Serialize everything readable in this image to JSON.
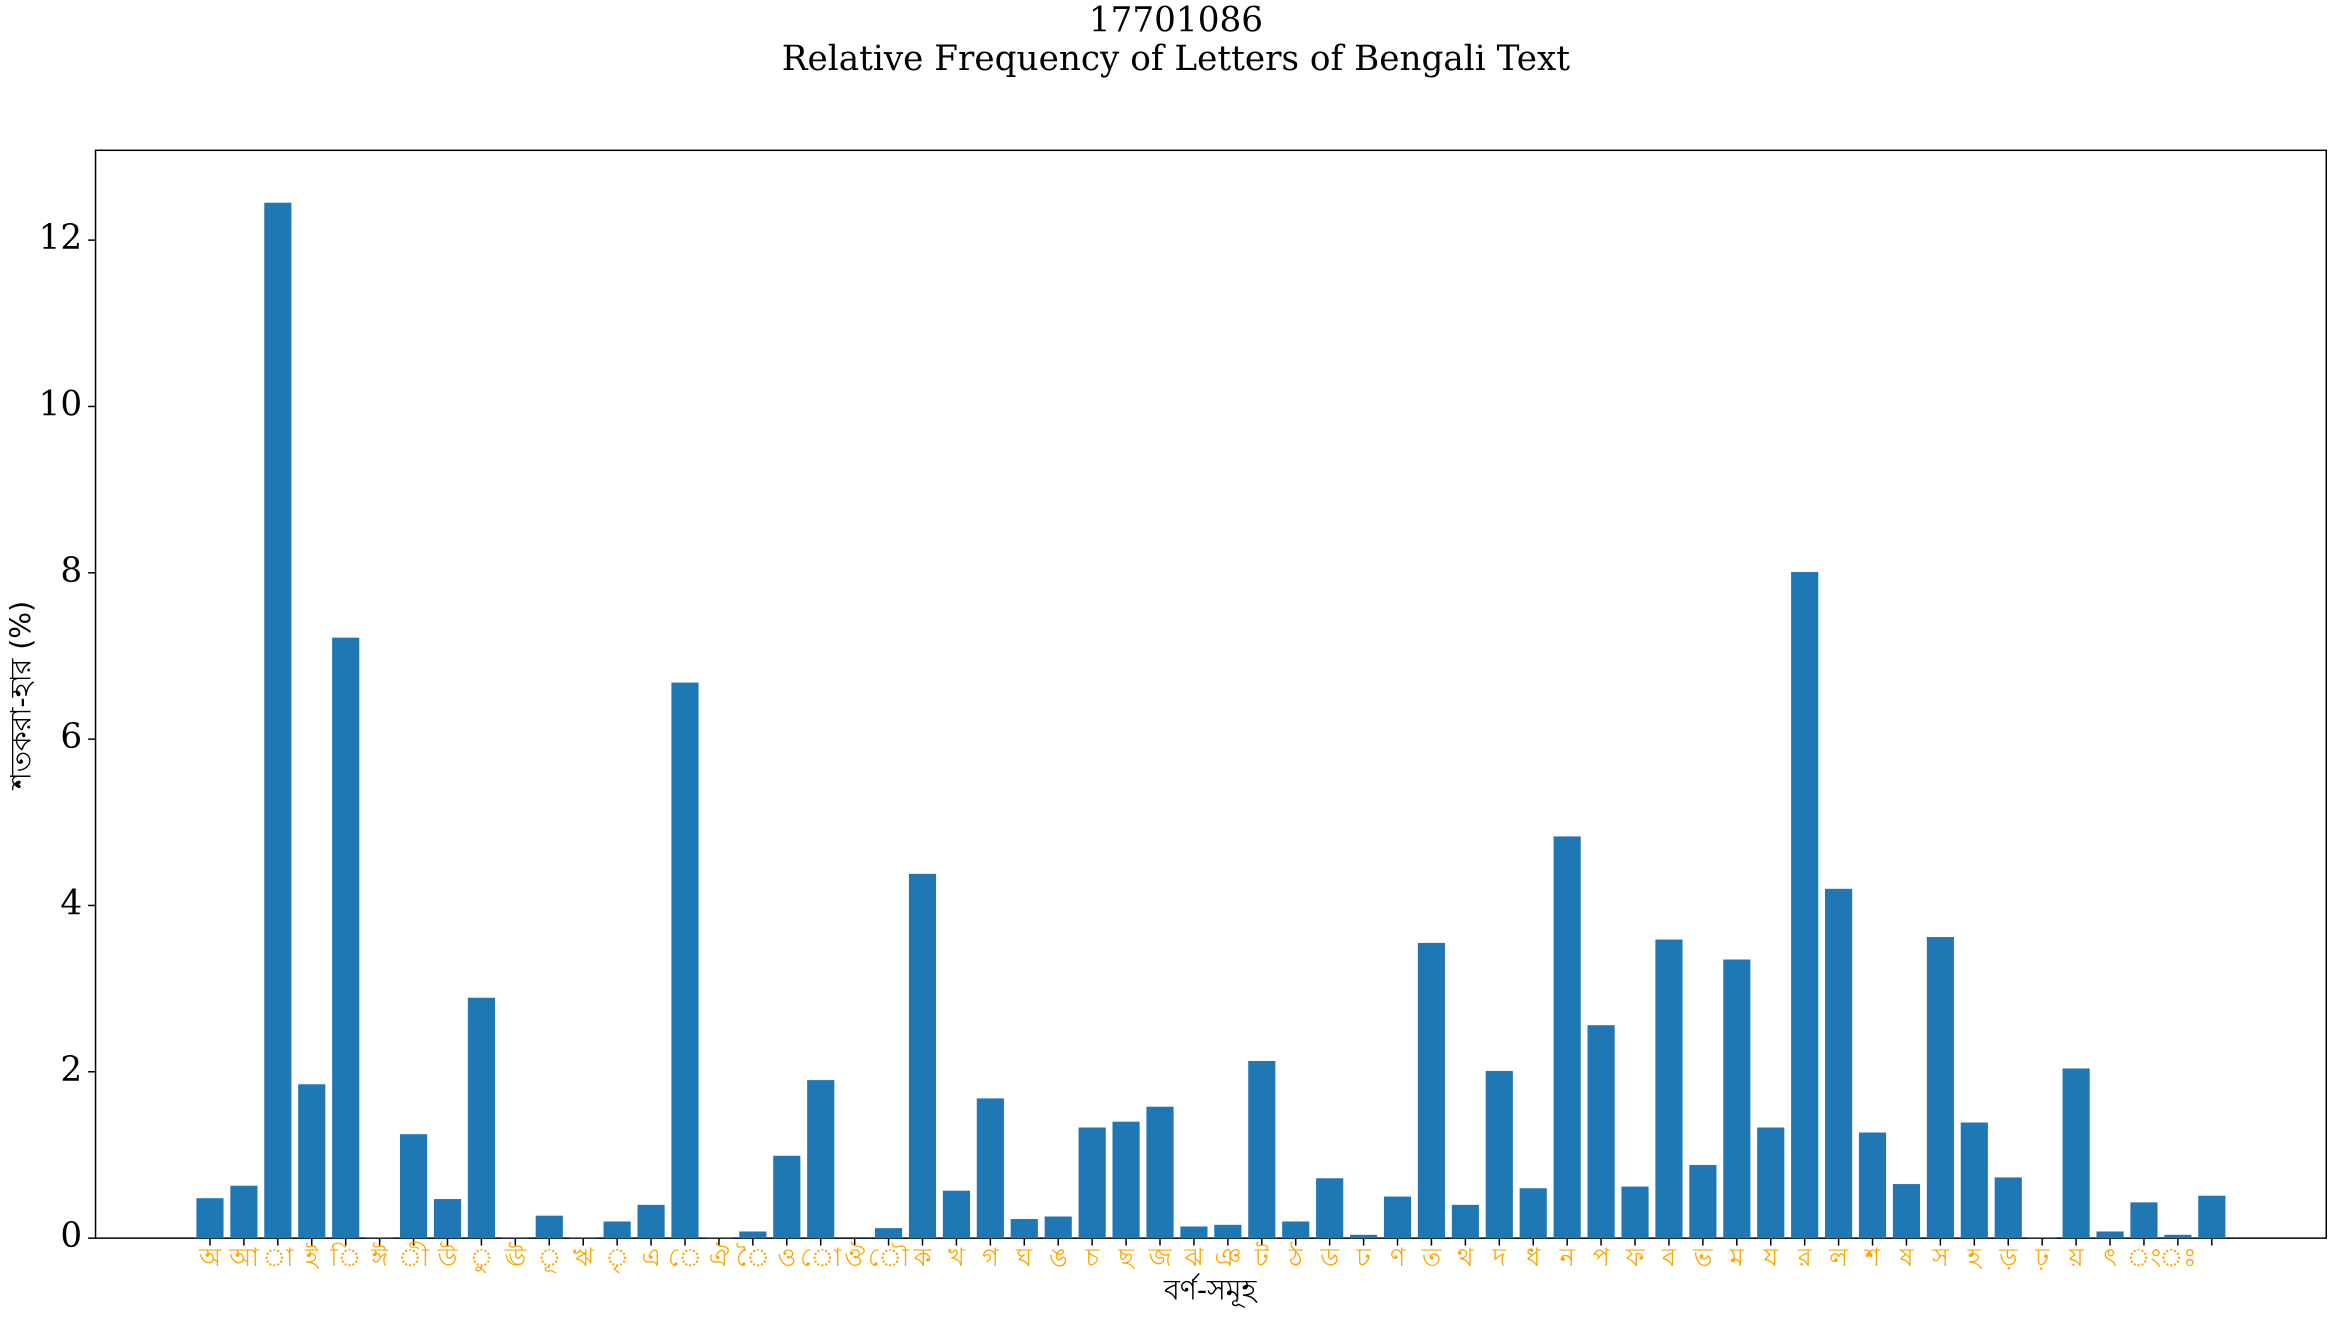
{
  "chart_data": {
    "type": "bar",
    "title": "17701086",
    "subtitle": "Relative Frequency of Letters of Bengali Text",
    "x_label": "বর্ণ-সমূহ",
    "y_label": "শতকরা-হার (%)",
    "categories": [
      "অ",
      "আ",
      "া",
      "ই",
      "ি",
      "ঈ",
      "ী",
      "উ",
      "ু",
      "ঊ",
      "ূ",
      "ঋ",
      "ৃ",
      "এ",
      "ে",
      "ঐ",
      "ৈ",
      "ও",
      "ো",
      "ঔ",
      "ৌ",
      "ক",
      "খ",
      "গ",
      "ঘ",
      "ঙ",
      "চ",
      "ছ",
      "জ",
      "ঝ",
      "ঞ",
      "ট",
      "ঠ",
      "ড",
      "ঢ",
      "ণ",
      "ত",
      "থ",
      "দ",
      "ধ",
      "ন",
      "প",
      "ফ",
      "ব",
      "ভ",
      "ম",
      "য",
      "র",
      "ল",
      "শ",
      "ষ",
      "স",
      "হ",
      "ড়",
      "ঢ়",
      "য়",
      "ৎ",
      "ং",
      "ঃ",
      null
    ],
    "values": [
      0.48,
      0.63,
      12.45,
      1.85,
      7.22,
      0.01,
      1.25,
      0.47,
      2.89,
      0.01,
      0.27,
      0.01,
      0.2,
      0.4,
      6.68,
      0.01,
      0.08,
      0.99,
      1.9,
      0.0,
      0.12,
      4.38,
      0.57,
      1.68,
      0.23,
      0.26,
      1.33,
      1.4,
      1.58,
      0.14,
      0.16,
      2.13,
      0.2,
      0.72,
      0.04,
      0.5,
      3.55,
      0.4,
      2.01,
      0.6,
      4.83,
      2.56,
      0.62,
      3.59,
      0.88,
      3.35,
      1.33,
      8.01,
      4.2,
      1.27,
      0.65,
      3.62,
      1.39,
      0.73,
      0.01,
      2.04,
      0.08,
      0.43,
      0.04,
      0.51
    ],
    "color": "#1f77b4",
    "label_color": "#ffa500",
    "ylim": [
      0,
      13.08
    ],
    "yticks": [
      0,
      2,
      4,
      6,
      8,
      10,
      12
    ]
  }
}
